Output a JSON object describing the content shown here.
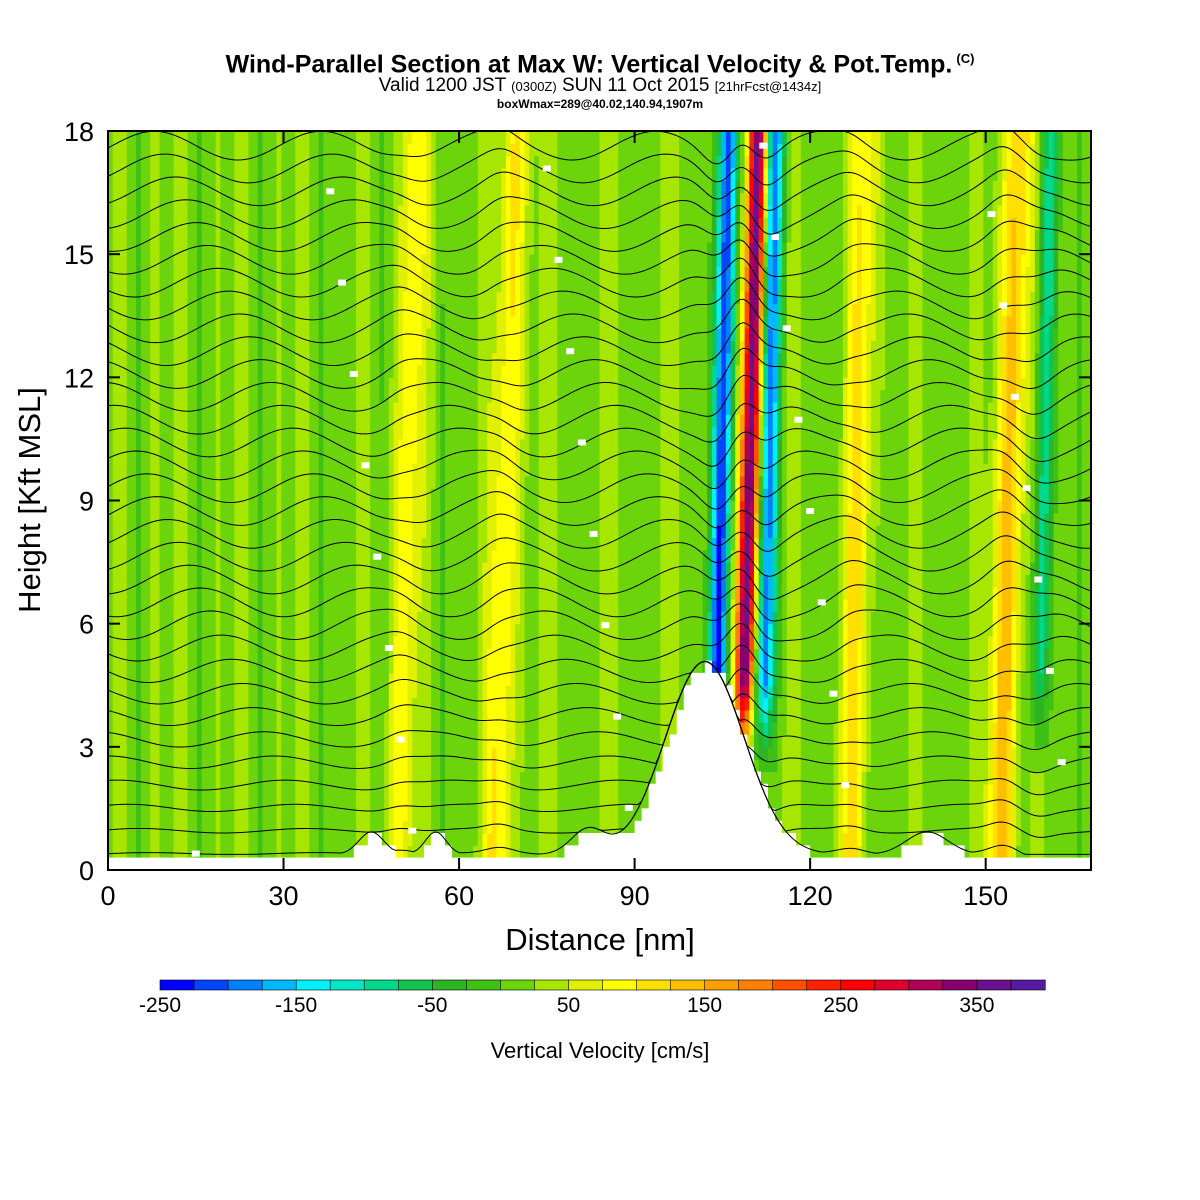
{
  "header": {
    "title": "Wind-Parallel Section at Max W: Vertical Velocity & Pot.Temp.",
    "copyright": "(C)",
    "valid_prefix": "Valid 1200 JST",
    "valid_z": "(0300Z)",
    "valid_date": "SUN 11 Oct 2015",
    "valid_fcst": "[21hrFcst@1434z]",
    "boxinfo": "boxWmax=289@40.02,140.94,1907m"
  },
  "chart_data": {
    "type": "heatmap",
    "title": "Wind-Parallel Section at Max W: Vertical Velocity & Pot.Temp.",
    "xlabel": "Distance [nm]",
    "ylabel": "Height [Kft MSL]",
    "xlim": [
      0,
      168
    ],
    "ylim": [
      0,
      18
    ],
    "xticks": [
      0,
      30,
      60,
      90,
      120,
      150
    ],
    "yticks": [
      0,
      3,
      6,
      9,
      12,
      15,
      18
    ],
    "colorbar": {
      "title": "Vertical Velocity [cm/s]",
      "min": -250,
      "max": 400,
      "step": 25,
      "tick_values": [
        -250,
        -150,
        -50,
        50,
        150,
        250,
        350
      ],
      "tick_labels": [
        "-250",
        "-150",
        "-50",
        "50",
        "150",
        "250",
        "350"
      ],
      "colors": [
        "#0000ff",
        "#0045ff",
        "#0080ff",
        "#00b8ff",
        "#00f0ff",
        "#00e6c8",
        "#00d88c",
        "#12c34c",
        "#2cb424",
        "#3ec014",
        "#6cd40a",
        "#a6e600",
        "#e0f000",
        "#ffff00",
        "#ffdf00",
        "#ffbf00",
        "#ff9f00",
        "#ff7f00",
        "#ff5000",
        "#ff2000",
        "#ff0000",
        "#e00030",
        "#b00058",
        "#880070",
        "#6a1090",
        "#551ba1"
      ]
    },
    "updrafts": [
      {
        "center_x_nm": 108.5,
        "peak_w": 350
      },
      {
        "center_x_nm": 153,
        "peak_w": 140
      },
      {
        "center_x_nm": 127,
        "peak_w": 90
      },
      {
        "center_x_nm": 67,
        "peak_w": 100
      },
      {
        "center_x_nm": 50,
        "peak_w": 80
      }
    ],
    "downdrafts": [
      {
        "center_x_nm": 104,
        "peak_w": -250
      },
      {
        "center_x_nm": 112,
        "peak_w": -200
      },
      {
        "center_x_nm": 159,
        "peak_w": -110
      }
    ],
    "max_w_cm_s": 289,
    "terrain_peak": {
      "x_nm": 102,
      "height_kft": 4.7
    },
    "isentropes": {
      "count": 32,
      "label_color": "#ffffff"
    }
  }
}
